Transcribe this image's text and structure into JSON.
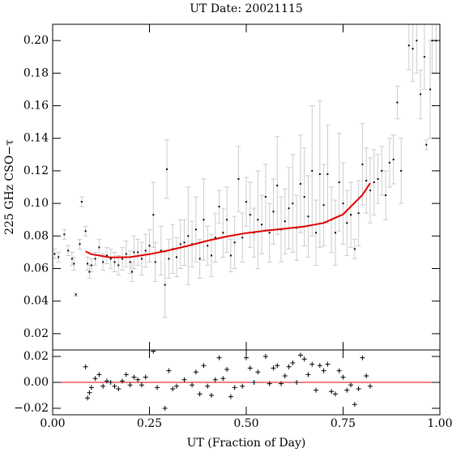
{
  "chart_data": [
    {
      "type": "scatter",
      "title": "UT Date: 20021115",
      "ylabel": "225 GHz CSO−τ",
      "xlim": [
        0,
        1
      ],
      "xticks": [
        0,
        0.25,
        0.5,
        0.75,
        1
      ],
      "ylim": [
        0.01,
        0.21
      ],
      "yticks": [
        0.02,
        0.04,
        0.06,
        0.08,
        {
          "value": 0.1,
          "label": "0.10"
        },
        0.12,
        0.14,
        0.16,
        0.18,
        {
          "value": 0.2,
          "label": "0.20"
        }
      ],
      "points": {
        "color": "#000000",
        "error_color": "#cccccc",
        "x": [
          0.005,
          0.015,
          0.03,
          0.04,
          0.05,
          0.055,
          0.06,
          0.07,
          0.075,
          0.085,
          0.09,
          0.095,
          0.1,
          0.11,
          0.12,
          0.13,
          0.14,
          0.15,
          0.16,
          0.17,
          0.18,
          0.19,
          0.2,
          0.205,
          0.21,
          0.22,
          0.23,
          0.24,
          0.25,
          0.26,
          0.265,
          0.28,
          0.29,
          0.295,
          0.3,
          0.31,
          0.32,
          0.33,
          0.34,
          0.35,
          0.36,
          0.37,
          0.38,
          0.39,
          0.4,
          0.41,
          0.42,
          0.43,
          0.44,
          0.45,
          0.46,
          0.47,
          0.48,
          0.49,
          0.5,
          0.51,
          0.52,
          0.53,
          0.54,
          0.55,
          0.56,
          0.57,
          0.58,
          0.59,
          0.6,
          0.61,
          0.62,
          0.63,
          0.64,
          0.65,
          0.66,
          0.67,
          0.68,
          0.69,
          0.7,
          0.71,
          0.72,
          0.73,
          0.74,
          0.75,
          0.76,
          0.77,
          0.78,
          0.79,
          0.8,
          0.81,
          0.82,
          0.83,
          0.84,
          0.85,
          0.86,
          0.87,
          0.88,
          0.89,
          0.9,
          0.92,
          0.93,
          0.94,
          0.95,
          0.96,
          0.965,
          0.975,
          0.98,
          0.99
        ],
        "values": [
          0.069,
          0.067,
          0.081,
          0.071,
          0.066,
          0.063,
          0.044,
          0.075,
          0.101,
          0.083,
          0.063,
          0.058,
          0.062,
          0.066,
          0.073,
          0.064,
          0.068,
          0.066,
          0.064,
          0.062,
          0.066,
          0.069,
          0.064,
          0.058,
          0.07,
          0.07,
          0.066,
          0.071,
          0.074,
          0.093,
          0.064,
          0.071,
          0.05,
          0.121,
          0.066,
          0.072,
          0.067,
          0.075,
          0.076,
          0.08,
          0.075,
          0.084,
          0.066,
          0.09,
          0.074,
          0.068,
          0.079,
          0.098,
          0.082,
          0.09,
          0.068,
          0.076,
          0.115,
          0.079,
          0.101,
          0.093,
          0.082,
          0.09,
          0.087,
          0.104,
          0.082,
          0.095,
          0.111,
          0.084,
          0.089,
          0.097,
          0.1,
          0.085,
          0.112,
          0.104,
          0.092,
          0.12,
          0.082,
          0.118,
          0.099,
          0.118,
          0.09,
          0.082,
          0.113,
          0.1,
          0.088,
          0.093,
          0.072,
          0.094,
          0.124,
          0.114,
          0.108,
          0.113,
          0.115,
          0.12,
          0.105,
          0.125,
          0.127,
          0.162,
          0.12,
          0.197,
          0.195,
          0.2,
          0.167,
          0.19,
          0.136,
          0.17,
          0.2,
          0.2
        ],
        "errors": [
          0.003,
          0.003,
          0.003,
          0.003,
          0.004,
          0.004,
          0.001,
          0.003,
          0.003,
          0.003,
          0.004,
          0.004,
          0.004,
          0.004,
          0.005,
          0.005,
          0.005,
          0.006,
          0.006,
          0.006,
          0.007,
          0.008,
          0.007,
          0.006,
          0.01,
          0.008,
          0.01,
          0.01,
          0.01,
          0.02,
          0.012,
          0.015,
          0.02,
          0.018,
          0.012,
          0.015,
          0.012,
          0.015,
          0.014,
          0.03,
          0.014,
          0.02,
          0.012,
          0.025,
          0.012,
          0.013,
          0.015,
          0.01,
          0.015,
          0.02,
          0.01,
          0.016,
          0.02,
          0.015,
          0.015,
          0.02,
          0.015,
          0.03,
          0.018,
          0.02,
          0.018,
          0.02,
          0.03,
          0.02,
          0.02,
          0.025,
          0.03,
          0.02,
          0.03,
          0.03,
          0.025,
          0.04,
          0.02,
          0.045,
          0.025,
          0.03,
          0.02,
          0.02,
          0.03,
          0.025,
          0.02,
          0.02,
          0.006,
          0.02,
          0.025,
          0.02,
          0.02,
          0.02,
          0.015,
          0.015,
          0.015,
          0.015,
          0.015,
          0.01,
          0.02,
          0.015,
          0.02,
          0.02,
          0.015,
          0.02,
          0.003,
          0.03,
          0.02,
          0.02
        ]
      },
      "fit": {
        "color": "#e00000",
        "x": [
          0.085,
          0.1,
          0.15,
          0.2,
          0.25,
          0.3,
          0.35,
          0.4,
          0.45,
          0.5,
          0.55,
          0.6,
          0.65,
          0.7,
          0.75,
          0.8,
          0.82
        ],
        "values": [
          0.0705,
          0.0688,
          0.0668,
          0.067,
          0.0688,
          0.0712,
          0.074,
          0.0771,
          0.0797,
          0.0818,
          0.0833,
          0.0845,
          0.0858,
          0.088,
          0.0933,
          0.1052,
          0.1125
        ]
      }
    },
    {
      "type": "residual",
      "xlabel": "UT (Fraction of Day)",
      "xlim": [
        0,
        1
      ],
      "xticks": [
        {
          "value": 0,
          "label": "0.00"
        },
        0.25,
        {
          "value": 0.5,
          "label": "0.50"
        },
        0.75,
        {
          "value": 1,
          "label": "1.00"
        }
      ],
      "ylim": [
        -0.025,
        0.025
      ],
      "yticks": [
        {
          "value": -0.02,
          "label": "−0.02"
        },
        {
          "value": 0,
          "label": "0.00"
        },
        0.02
      ],
      "reference_line": {
        "value": 0,
        "color": "#e00000"
      },
      "color": "#000000",
      "x": [
        0.085,
        0.09,
        0.095,
        0.1,
        0.11,
        0.12,
        0.13,
        0.14,
        0.15,
        0.16,
        0.17,
        0.18,
        0.19,
        0.2,
        0.21,
        0.22,
        0.23,
        0.24,
        0.26,
        0.27,
        0.29,
        0.3,
        0.31,
        0.32,
        0.34,
        0.36,
        0.37,
        0.38,
        0.39,
        0.4,
        0.41,
        0.42,
        0.43,
        0.44,
        0.45,
        0.46,
        0.47,
        0.49,
        0.5,
        0.51,
        0.52,
        0.53,
        0.55,
        0.56,
        0.57,
        0.58,
        0.59,
        0.6,
        0.61,
        0.62,
        0.63,
        0.64,
        0.65,
        0.66,
        0.67,
        0.68,
        0.69,
        0.7,
        0.71,
        0.72,
        0.73,
        0.74,
        0.75,
        0.76,
        0.77,
        0.78,
        0.79,
        0.8,
        0.81,
        0.82
      ],
      "values": [
        0.012,
        -0.012,
        -0.008,
        -0.004,
        0.003,
        0.006,
        -0.003,
        0.001,
        0,
        -0.003,
        -0.005,
        0.001,
        0.006,
        -0.002,
        0.004,
        0.002,
        -0.002,
        0.004,
        0.024,
        -0.004,
        -0.02,
        0.009,
        -0.005,
        -0.003,
        0.002,
        -0.002,
        0.008,
        -0.009,
        0.013,
        -0.003,
        -0.01,
        0.002,
        0.019,
        0.003,
        0.01,
        -0.011,
        -0.004,
        -0.003,
        0.019,
        0.011,
        0,
        0.008,
        0.02,
        -0.001,
        0.011,
        0.013,
        -0.001,
        0.005,
        0.012,
        0.015,
        0,
        0.021,
        0.018,
        0.006,
        0.014,
        -0.006,
        0.013,
        0.009,
        0.014,
        -0.007,
        -0.009,
        0.009,
        0.004,
        -0.006,
        -0.002,
        -0.017,
        -0.005,
        0.019,
        0.005,
        -0.003
      ]
    }
  ]
}
